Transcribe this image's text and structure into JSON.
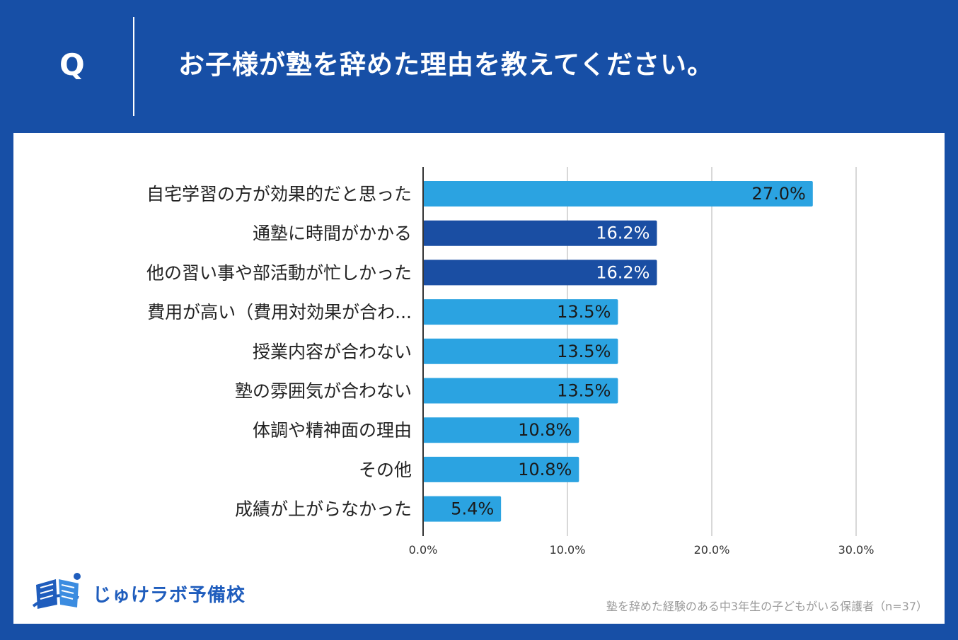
{
  "header": {
    "q_letter": "Q",
    "question": "お子様が塾を辞めた理由を教えてください。"
  },
  "colors": {
    "background": "#174fa6",
    "bar_light": "#2ba3e1",
    "bar_dark": "#1a4ea3",
    "grid": "#cccccc"
  },
  "chart_data": {
    "type": "bar",
    "orientation": "horizontal",
    "title": "お子様が塾を辞めた理由を教えてください。",
    "categories": [
      "自宅学習の方が効果的だと思った",
      "通塾に時間がかかる",
      "他の習い事や部活動が忙しかった",
      "費用が高い（費用対効果が合わ...",
      "授業内容が合わない",
      "塾の雰囲気が合わない",
      "体調や精神面の理由",
      "その他",
      "成績が上がらなかった"
    ],
    "values": [
      27.0,
      16.2,
      16.2,
      13.5,
      13.5,
      13.5,
      10.8,
      10.8,
      5.4
    ],
    "value_labels": [
      "27.0%",
      "16.2%",
      "16.2%",
      "13.5%",
      "13.5%",
      "13.5%",
      "10.8%",
      "10.8%",
      "5.4%"
    ],
    "highlight": [
      false,
      true,
      true,
      false,
      false,
      false,
      false,
      false,
      false
    ],
    "xlim": [
      0,
      30
    ],
    "xticks": [
      0,
      10,
      20,
      30
    ],
    "xtick_labels": [
      "0.0%",
      "10.0%",
      "20.0%",
      "30.0%"
    ],
    "grid": true,
    "legend": "none"
  },
  "footer": {
    "logo_text": "じゅけラボ予備校",
    "note": "塾を辞めた経験のある中3年生の子どもがいる保護者（n=37）"
  }
}
